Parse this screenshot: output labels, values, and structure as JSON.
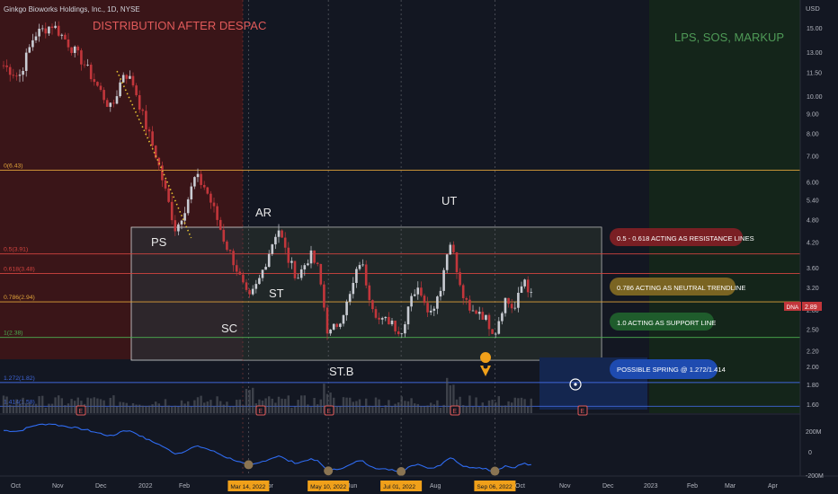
{
  "header": {
    "symbol_title": "Ginkgo Bioworks Holdings, Inc., 1D, NYSE",
    "currency": "USD"
  },
  "annotations": {
    "distribution": "DISTRIBUTION AFTER DESPAC",
    "markup": "LPS, SOS, MARKUP",
    "ps": "PS",
    "sc": "SC",
    "ar": "AR",
    "st": "ST",
    "stb": "ST.B",
    "ut": "UT"
  },
  "callouts": [
    {
      "id": "resistance",
      "text": "0.5 - 0.618 ACTING AS RESISTANCE LINES",
      "color": "#7a1f24"
    },
    {
      "id": "neutral",
      "text": "0.786 ACTING AS NEUTRAL TRENDLINE",
      "color": "#7a6422"
    },
    {
      "id": "support",
      "text": "1.0 ACTING AS SUPPORT LINE",
      "color": "#1f5c2c"
    },
    {
      "id": "spring",
      "text": "POSSIBLE SPRING @ 1.272/1.414",
      "color": "#1e4bb0"
    }
  ],
  "fib_levels": [
    {
      "label": "0(6.43)",
      "value": 6.43,
      "color": "#e0a33a"
    },
    {
      "label": "0.5(3.91)",
      "value": 3.91,
      "color": "#d2443f"
    },
    {
      "label": "0.618(3.48)",
      "value": 3.48,
      "color": "#d2443f"
    },
    {
      "label": "0.786(2.94)",
      "value": 2.94,
      "color": "#e0a33a"
    },
    {
      "label": "1(2.38)",
      "value": 2.38,
      "color": "#4caf50"
    },
    {
      "label": "1.272(1.82)",
      "value": 1.82,
      "color": "#3f66d9"
    },
    {
      "label": "1.414(1.58)",
      "value": 1.58,
      "color": "#3f66d9"
    }
  ],
  "price_badge": {
    "ticker": "DNA",
    "price": "2.89"
  },
  "volume_axis_labels": [
    "200M",
    "0",
    "-200M"
  ],
  "event_markers": [
    "E",
    "E",
    "E",
    "E",
    "E"
  ],
  "x_axis": {
    "ticks": [
      "Oct",
      "Nov",
      "Dec",
      "2022",
      "Feb",
      "Apr",
      "Jun",
      "Aug",
      "Oct",
      "Nov",
      "Dec",
      "2023",
      "Feb",
      "Mar",
      "Apr"
    ],
    "highlight_ticks": [
      "Mar 14, 2022",
      "May 10, 2022",
      "Jul 01, 2022",
      "Sep 06, 2022"
    ]
  },
  "colors": {
    "background": "#131722",
    "distribution_zone": "#3a1518",
    "markup_zone": "#14251a",
    "range_box": "#2a2c31",
    "spring_zone": "#14264f",
    "candle_up": "#c9ccd3",
    "candle_down": "#c2363b",
    "oscillator": "#2f6bf0"
  },
  "chart_data": {
    "type": "candlestick",
    "title": "Ginkgo Bioworks Holdings, Inc., 1D, NYSE",
    "ylabel": "USD",
    "y_scale": "log",
    "y_ticks": [
      15.0,
      13.0,
      11.5,
      10.0,
      9.0,
      8.0,
      7.0,
      6.0,
      5.4,
      4.8,
      4.2,
      3.6,
      3.2,
      2.8,
      2.5,
      2.2,
      2.0,
      1.8,
      1.6
    ],
    "ylim": [
      1.5,
      16.8
    ],
    "x_range": [
      "2021-09-17",
      "2023-04-30"
    ],
    "close_series": [
      [
        "2021-09-20",
        12.0
      ],
      [
        "2021-10-01",
        11.2
      ],
      [
        "2021-10-12",
        14.4
      ],
      [
        "2021-10-25",
        15.3
      ],
      [
        "2021-11-03",
        14.0
      ],
      [
        "2021-11-16",
        12.2
      ],
      [
        "2021-11-26",
        10.6
      ],
      [
        "2021-12-06",
        9.2
      ],
      [
        "2021-12-15",
        11.6
      ],
      [
        "2021-12-22",
        10.7
      ],
      [
        "2021-12-30",
        8.5
      ],
      [
        "2022-01-07",
        7.0
      ],
      [
        "2022-01-14",
        5.6
      ],
      [
        "2022-01-21",
        4.5
      ],
      [
        "2022-01-28",
        5.2
      ],
      [
        "2022-02-04",
        6.2
      ],
      [
        "2022-02-11",
        5.8
      ],
      [
        "2022-02-18",
        5.0
      ],
      [
        "2022-02-25",
        4.2
      ],
      [
        "2022-03-04",
        3.7
      ],
      [
        "2022-03-14",
        2.95
      ],
      [
        "2022-03-21",
        3.3
      ],
      [
        "2022-03-28",
        3.9
      ],
      [
        "2022-04-04",
        4.6
      ],
      [
        "2022-04-11",
        3.8
      ],
      [
        "2022-04-18",
        3.4
      ],
      [
        "2022-04-27",
        3.9
      ],
      [
        "2022-05-03",
        3.55
      ],
      [
        "2022-05-10",
        2.4
      ],
      [
        "2022-05-17",
        2.6
      ],
      [
        "2022-05-25",
        3.0
      ],
      [
        "2022-06-02",
        3.8
      ],
      [
        "2022-06-09",
        3.0
      ],
      [
        "2022-06-16",
        2.6
      ],
      [
        "2022-06-24",
        2.65
      ],
      [
        "2022-07-01",
        2.4
      ],
      [
        "2022-07-08",
        3.1
      ],
      [
        "2022-07-15",
        3.15
      ],
      [
        "2022-07-22",
        2.75
      ],
      [
        "2022-07-29",
        3.2
      ],
      [
        "2022-08-05",
        4.3
      ],
      [
        "2022-08-12",
        3.2
      ],
      [
        "2022-08-19",
        2.75
      ],
      [
        "2022-08-26",
        2.8
      ],
      [
        "2022-09-06",
        2.45
      ],
      [
        "2022-09-13",
        3.0
      ],
      [
        "2022-09-20",
        2.8
      ],
      [
        "2022-09-27",
        3.4
      ],
      [
        "2022-10-04",
        2.89
      ]
    ],
    "volume_pane": "histogram (relative)",
    "oscillator_pane": "line (relative)"
  }
}
